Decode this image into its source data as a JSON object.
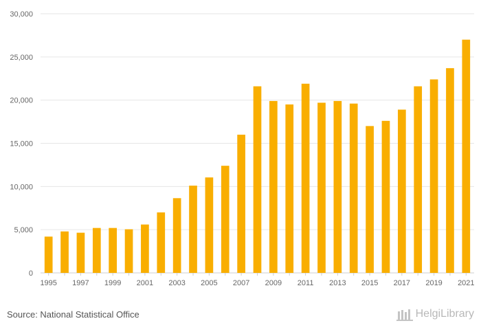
{
  "chart_data": {
    "type": "bar",
    "categories": [
      "1995",
      "1996",
      "1997",
      "1998",
      "1999",
      "2000",
      "2001",
      "2002",
      "2003",
      "2004",
      "2005",
      "2006",
      "2007",
      "2008",
      "2009",
      "2010",
      "2011",
      "2012",
      "2013",
      "2014",
      "2015",
      "2016",
      "2017",
      "2018",
      "2019",
      "2020",
      "2021"
    ],
    "values": [
      4200,
      4800,
      4650,
      5200,
      5200,
      5050,
      5600,
      7000,
      8650,
      10100,
      11050,
      12400,
      16000,
      21600,
      19900,
      19500,
      21900,
      19700,
      19900,
      19600,
      17000,
      17600,
      18900,
      21600,
      22400,
      23700,
      27000
    ],
    "x_tick_labels": [
      "1995",
      "1997",
      "1999",
      "2001",
      "2003",
      "2005",
      "2007",
      "2009",
      "2011",
      "2013",
      "2015",
      "2017",
      "2019",
      "2021"
    ],
    "y_tick_labels": [
      "0",
      "5,000",
      "10,000",
      "15,000",
      "20,000",
      "25,000",
      "30,000"
    ],
    "y_ticks": [
      0,
      5000,
      10000,
      15000,
      20000,
      25000,
      30000
    ],
    "ylim": [
      0,
      30000
    ],
    "title": "",
    "xlabel": "",
    "ylabel": "",
    "bar_color": "#f9ae00",
    "grid": true
  },
  "footer": {
    "source": "Source: National Statistical Office",
    "brand": "HelgiLibrary"
  }
}
